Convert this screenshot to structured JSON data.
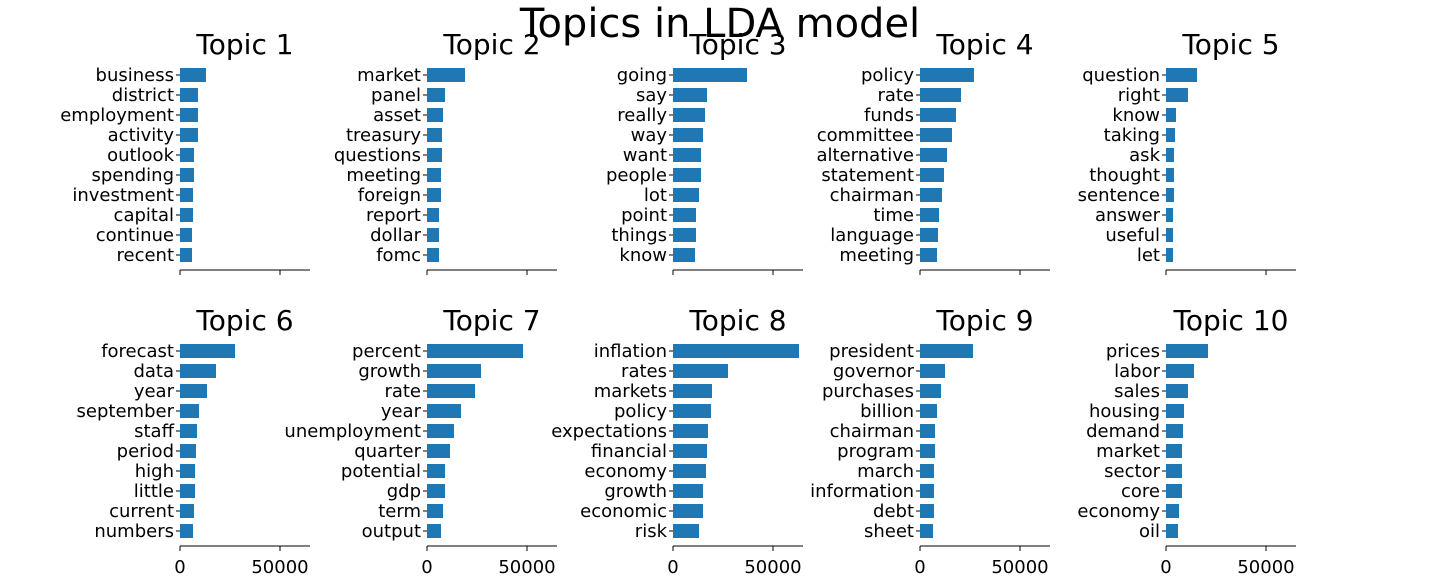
{
  "title": "Topics in LDA model",
  "chart_data": {
    "type": "bar",
    "orientation": "horizontal",
    "title": "Topics in LDA model",
    "bar_color": "#1f77b4",
    "xlim": [
      0,
      65000
    ],
    "xticks": [
      "0",
      "50000"
    ],
    "xticks_shown_on": "bottom row only",
    "grid": false,
    "panels": [
      {
        "title": "Topic 1",
        "categories": [
          "business",
          "district",
          "employment",
          "activity",
          "outlook",
          "spending",
          "investment",
          "capital",
          "continue",
          "recent"
        ],
        "values": [
          13000,
          9000,
          9000,
          9000,
          7000,
          7000,
          6500,
          6500,
          6000,
          6000
        ]
      },
      {
        "title": "Topic 2",
        "categories": [
          "market",
          "panel",
          "asset",
          "treasury",
          "questions",
          "meeting",
          "foreign",
          "report",
          "dollar",
          "fomc"
        ],
        "values": [
          19000,
          9000,
          8000,
          7500,
          7500,
          7000,
          7000,
          6000,
          6000,
          6000
        ]
      },
      {
        "title": "Topic 3",
        "categories": [
          "going",
          "say",
          "really",
          "way",
          "want",
          "people",
          "lot",
          "point",
          "things",
          "know"
        ],
        "values": [
          37000,
          17000,
          16000,
          15000,
          14000,
          14000,
          13000,
          11500,
          11500,
          11000
        ]
      },
      {
        "title": "Topic 4",
        "categories": [
          "policy",
          "rate",
          "funds",
          "committee",
          "alternative",
          "statement",
          "chairman",
          "time",
          "language",
          "meeting"
        ],
        "values": [
          27000,
          20500,
          18000,
          16000,
          13500,
          12000,
          11000,
          9500,
          9000,
          8500
        ]
      },
      {
        "title": "Topic 5",
        "categories": [
          "question",
          "right",
          "know",
          "taking",
          "ask",
          "thought",
          "sentence",
          "answer",
          "useful",
          "let"
        ],
        "values": [
          15500,
          11000,
          5000,
          4500,
          4000,
          4000,
          4000,
          3500,
          3500,
          3500
        ]
      },
      {
        "title": "Topic 6",
        "categories": [
          "forecast",
          "data",
          "year",
          "september",
          "staff",
          "period",
          "high",
          "little",
          "current",
          "numbers"
        ],
        "values": [
          27500,
          18000,
          13500,
          9500,
          8500,
          8000,
          7500,
          7500,
          7000,
          6500
        ]
      },
      {
        "title": "Topic 7",
        "categories": [
          "percent",
          "growth",
          "rate",
          "year",
          "unemployment",
          "quarter",
          "potential",
          "gdp",
          "term",
          "output"
        ],
        "values": [
          48000,
          27000,
          24000,
          17000,
          13500,
          11500,
          9000,
          9000,
          8000,
          7000
        ]
      },
      {
        "title": "Topic 8",
        "categories": [
          "inflation",
          "rates",
          "markets",
          "policy",
          "expectations",
          "financial",
          "economy",
          "growth",
          "economic",
          "risk"
        ],
        "values": [
          63000,
          27500,
          19500,
          19000,
          17500,
          17000,
          16500,
          15000,
          15000,
          13000
        ]
      },
      {
        "title": "Topic 9",
        "categories": [
          "president",
          "governor",
          "purchases",
          "billion",
          "chairman",
          "program",
          "march",
          "information",
          "debt",
          "sheet"
        ],
        "values": [
          26500,
          12500,
          10500,
          8500,
          7500,
          7500,
          7000,
          7000,
          7000,
          6500
        ]
      },
      {
        "title": "Topic 10",
        "categories": [
          "prices",
          "labor",
          "sales",
          "housing",
          "demand",
          "market",
          "sector",
          "core",
          "economy",
          "oil"
        ],
        "values": [
          21000,
          14000,
          11000,
          9000,
          8500,
          8000,
          8000,
          8000,
          6500,
          6000
        ]
      }
    ]
  }
}
